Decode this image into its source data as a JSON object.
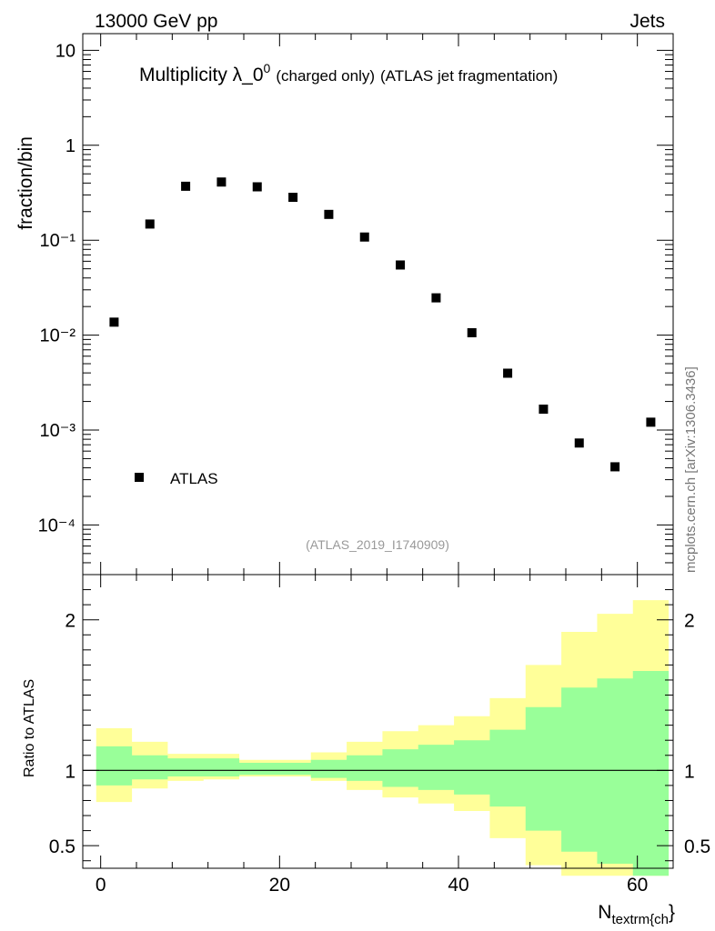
{
  "header": {
    "energy_label": "13000 GeV pp",
    "process_label": "Jets"
  },
  "watermark": "mcplots.cern.ch [arXiv:1306.3436]",
  "chart_data": [
    {
      "type": "scatter",
      "title_main": "Multiplicity λ_0",
      "title_sup": "0",
      "title_suffix_small": "(charged only)",
      "title_suffix": "(ATLAS jet fragmentation)",
      "analysis_label": "(ATLAS_2019_I1740909)",
      "ylabel": "fraction/bin",
      "yscale": "log",
      "ylim": [
        3e-05,
        15
      ],
      "xlim": [
        -2,
        64
      ],
      "ytick_labels": [
        "10",
        "1",
        "10⁻¹",
        "10⁻²",
        "10⁻³",
        "10⁻⁴"
      ],
      "legend": {
        "label": "ATLAS",
        "position": "bottom-left"
      },
      "series": [
        {
          "name": "ATLAS",
          "marker": "square",
          "x": [
            1.5,
            5.5,
            9.5,
            13.5,
            17.5,
            21.5,
            25.5,
            29.5,
            33.5,
            37.5,
            41.5,
            45.5,
            49.5,
            53.5,
            57.5,
            61.5
          ],
          "y": [
            0.0137,
            0.148,
            0.37,
            0.41,
            0.365,
            0.283,
            0.187,
            0.108,
            0.0548,
            0.0247,
            0.0106,
            0.00397,
            0.00166,
            0.00073,
            0.00041,
            0.00121
          ]
        }
      ]
    },
    {
      "type": "area",
      "ylabel": "Ratio to ATLAS",
      "xlabel_main": "N",
      "xlabel_sub": "textrm{ch",
      "xlabel_tail": "}",
      "xlim": [
        -2,
        64
      ],
      "ylim": [
        0.35,
        2.3
      ],
      "xticks": [
        0,
        20,
        40,
        60
      ],
      "yticks": [
        0.5,
        1,
        2
      ],
      "ytick_labels": [
        "0.5",
        "1",
        "2"
      ],
      "reference_line": 1,
      "bin_edges": [
        -0.5,
        3.5,
        7.5,
        11.5,
        15.5,
        19.5,
        23.5,
        27.5,
        31.5,
        35.5,
        39.5,
        43.5,
        47.5,
        51.5,
        55.5,
        59.5,
        63.5
      ],
      "band_outer": {
        "color": "#ffff99",
        "low": [
          0.79,
          0.88,
          0.93,
          0.94,
          0.96,
          0.96,
          0.93,
          0.87,
          0.82,
          0.78,
          0.73,
          0.55,
          0.37,
          0.3,
          0.3,
          0.3
        ],
        "high": [
          1.28,
          1.19,
          1.11,
          1.11,
          1.07,
          1.07,
          1.12,
          1.19,
          1.26,
          1.3,
          1.36,
          1.48,
          1.7,
          1.92,
          2.04,
          2.13
        ]
      },
      "band_inner": {
        "color": "#99ff99",
        "low": [
          0.9,
          0.94,
          0.96,
          0.96,
          0.97,
          0.97,
          0.95,
          0.93,
          0.89,
          0.87,
          0.84,
          0.76,
          0.6,
          0.46,
          0.38,
          0.3
        ],
        "high": [
          1.16,
          1.1,
          1.08,
          1.08,
          1.05,
          1.05,
          1.07,
          1.1,
          1.14,
          1.17,
          1.2,
          1.27,
          1.42,
          1.55,
          1.61,
          1.66
        ]
      }
    }
  ]
}
